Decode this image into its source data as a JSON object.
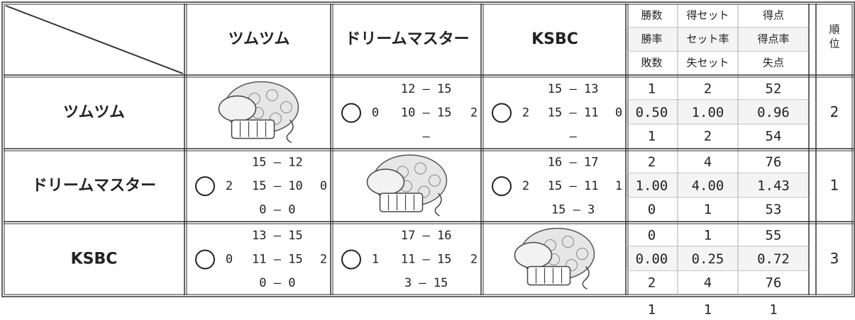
{
  "table": {
    "teams": [
      "ツムツム",
      "ドリームマスター",
      "KSBC"
    ],
    "stat_headers": [
      [
        "勝数",
        "得セット",
        "得点"
      ],
      [
        "勝率",
        "セット率",
        "得点率"
      ],
      [
        "敗数",
        "失セット",
        "失点"
      ]
    ],
    "rank_header": "順位",
    "rows": [
      {
        "team": "ツムツム",
        "matches": [
          null,
          {
            "scores": [
              "12 — 15",
              "10 — 15",
              "—"
            ],
            "sets": [
              "0",
              "2"
            ]
          },
          {
            "scores": [
              "15 — 13",
              "15 — 11",
              "—"
            ],
            "sets": [
              "2",
              "0"
            ]
          }
        ],
        "stats": [
          [
            "1",
            "2",
            "52"
          ],
          [
            "0.50",
            "1.00",
            "0.96"
          ],
          [
            "1",
            "2",
            "54"
          ]
        ],
        "rank": "2"
      },
      {
        "team": "ドリームマスター",
        "matches": [
          {
            "scores": [
              "15 — 12",
              "15 — 10",
              "0 — 0"
            ],
            "sets": [
              "2",
              "0"
            ]
          },
          null,
          {
            "scores": [
              "16 — 17",
              "15 — 11",
              "15 — 3"
            ],
            "sets": [
              "2",
              "1"
            ]
          }
        ],
        "stats": [
          [
            "2",
            "4",
            "76"
          ],
          [
            "1.00",
            "4.00",
            "1.43"
          ],
          [
            "0",
            "1",
            "53"
          ]
        ],
        "rank": "1"
      },
      {
        "team": "KSBC",
        "matches": [
          {
            "scores": [
              "13 — 15",
              "11 — 15",
              "0 — 0"
            ],
            "sets": [
              "0",
              "2"
            ]
          },
          {
            "scores": [
              "17 — 16",
              "11 — 15",
              "3 — 15"
            ],
            "sets": [
              "1",
              "2"
            ]
          },
          null
        ],
        "stats": [
          [
            "0",
            "1",
            "55"
          ],
          [
            "0.00",
            "0.25",
            "0.72"
          ],
          [
            "2",
            "4",
            "76"
          ]
        ],
        "rank": "3"
      }
    ],
    "footer": [
      "1",
      "1",
      "1"
    ]
  }
}
